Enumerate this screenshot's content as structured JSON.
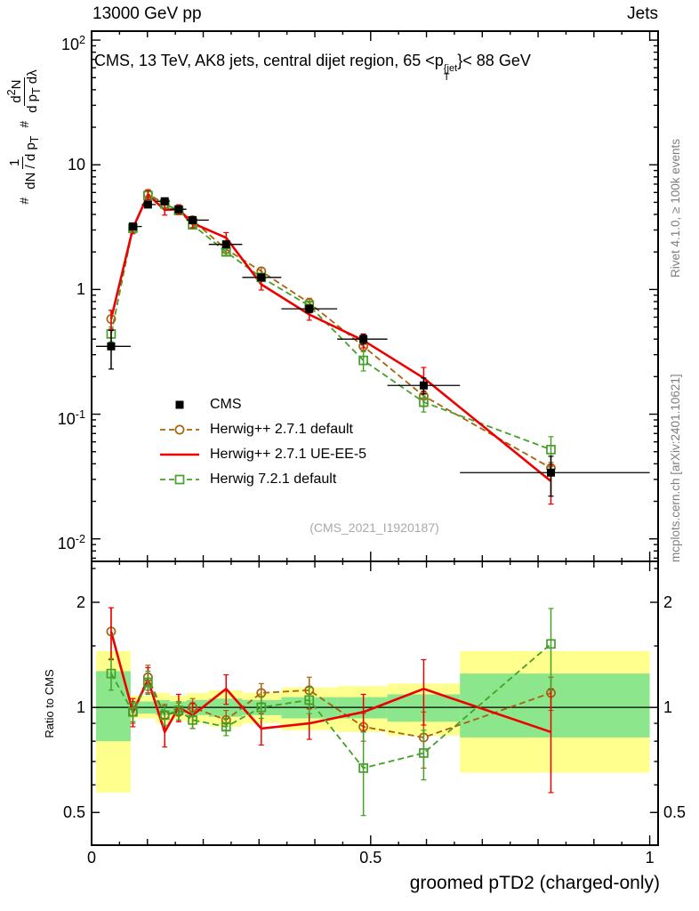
{
  "header": {
    "left_label": "13000 GeV pp",
    "right_label": "Jets"
  },
  "main_panel": {
    "title_html": "CMS, 13 TeV, AK8 jets, central dijet region, 65 &lt;p<span class='ss'><span class='up'>{jet</span><span class='dn'>T</span></span>}&lt; 88 GeV",
    "watermark": "(CMS_2021_I1920187)",
    "ylabel": {
      "hash1": "#",
      "frac1_num": "1",
      "frac1_den_html": "dN / d p<sub>T</sub>",
      "hash2": "#",
      "frac2_num_html": "d<sup>2</sup>N",
      "frac2_den_html": "d p<sub>T</sub> dλ"
    },
    "ytick_labels_html": [
      "10<sup>2</sup>",
      "10",
      "1",
      "10<sup>-1</sup>",
      "10<sup>-2</sup>"
    ],
    "ytick_values": [
      100,
      10,
      1,
      0.1,
      0.01
    ]
  },
  "ratio_panel": {
    "ylabel": "Ratio to CMS",
    "ytick_labels": [
      "2",
      "1",
      "0.5"
    ],
    "ytick_values": [
      2,
      1,
      0.5
    ]
  },
  "x_axis": {
    "title": "groomed pTD2 (charged-only)",
    "tick_labels": [
      "0",
      "0.5",
      "1"
    ],
    "tick_values": [
      0,
      0.5,
      1
    ]
  },
  "side_notes": {
    "top_right": "Rivet 4.1.0, ≥ 100k events",
    "bottom_right": "mcplots.cern.ch [arXiv:2401.10621]"
  },
  "legend": {
    "items": [
      {
        "label": "CMS",
        "marker": "square-filled",
        "line": "none",
        "color_key": "cms"
      },
      {
        "label": "Herwig++ 2.7.1 default",
        "marker": "circle-open",
        "line": "dashed",
        "color_key": "herwigpp_default"
      },
      {
        "label": "Herwig++ 2.7.1 UE-EE-5",
        "marker": "none",
        "line": "solid",
        "color_key": "herwigpp_ueee5"
      },
      {
        "label": "Herwig 7.2.1 default",
        "marker": "square-open",
        "line": "dashed",
        "color_key": "herwig7"
      }
    ]
  },
  "colors": {
    "cms": "#000000",
    "herwigpp_default": "#a8620f",
    "herwigpp_ueee5": "#ee0000",
    "herwig7": "#44a029",
    "band_yellow": "#ffff8d",
    "band_green": "#8ce78c",
    "gray_text": "#7f7f7f",
    "watermark": "#a9a9a9"
  },
  "chart_data": [
    {
      "type": "line",
      "panel": "main",
      "title": "CMS, 13 TeV, AK8 jets, central dijet region, 65 < pT^{jet} < 88 GeV",
      "xlabel": "groomed pTD2 (charged-only)",
      "ylabel": "# 1/(dN/dpT) # d2N/(dpT dlambda)",
      "legend_position": "inside-left",
      "grid": false,
      "x_range": [
        0,
        1.015
      ],
      "y_range_log": [
        0.0066,
        118
      ],
      "x": [
        0.035,
        0.074,
        0.101,
        0.131,
        0.156,
        0.181,
        0.241,
        0.304,
        0.39,
        0.487,
        0.595,
        0.823
      ],
      "bin_edges": [
        0.008,
        0.07,
        0.09,
        0.115,
        0.14,
        0.17,
        0.21,
        0.27,
        0.34,
        0.44,
        0.53,
        0.66,
        1.0
      ],
      "series": [
        {
          "name": "CMS",
          "marker": "square-filled",
          "line": "none",
          "color_key": "cms",
          "values": [
            0.35,
            3.2,
            4.8,
            5.1,
            4.4,
            3.6,
            2.3,
            1.25,
            0.7,
            0.4,
            0.17,
            0.034
          ],
          "errors": [
            0.12,
            0.18,
            0.22,
            0.2,
            0.17,
            0.14,
            0.1,
            0.07,
            0.05,
            0.035,
            0.025,
            0.012
          ]
        },
        {
          "name": "Herwig++ 2.7.1 default",
          "marker": "circle-open",
          "line": "dashed",
          "color_key": "herwigpp_default",
          "values": [
            0.58,
            3.1,
            5.85,
            4.85,
            4.3,
            3.6,
            2.1,
            1.4,
            0.78,
            0.35,
            0.14,
            0.037
          ],
          "errors": [
            0.1,
            0.2,
            0.45,
            0.33,
            0.26,
            0.2,
            0.13,
            0.1,
            0.07,
            0.032,
            0.025,
            0.004
          ]
        },
        {
          "name": "Herwig++ 2.7.1 UE-EE-5",
          "marker": "none",
          "line": "solid",
          "color_key": "herwigpp_ueee5",
          "values": [
            0.58,
            3.1,
            5.75,
            4.35,
            4.4,
            3.4,
            2.6,
            1.1,
            0.63,
            0.39,
            0.195,
            0.029
          ],
          "errors": [
            0.1,
            0.3,
            0.5,
            0.4,
            0.38,
            0.27,
            0.26,
            0.11,
            0.063,
            0.05,
            0.042,
            0.01
          ]
        },
        {
          "name": "Herwig 7.2.1 default",
          "marker": "square-open",
          "line": "dashed",
          "color_key": "herwig7",
          "values": [
            0.44,
            3.1,
            5.66,
            4.85,
            4.3,
            3.3,
            2.0,
            1.25,
            0.74,
            0.27,
            0.125,
            0.052
          ],
          "errors": [
            0.06,
            0.19,
            0.42,
            0.3,
            0.26,
            0.17,
            0.12,
            0.09,
            0.066,
            0.048,
            0.021,
            0.014
          ]
        }
      ],
      "annotation": "(CMS_2021_I1920187)"
    },
    {
      "type": "line",
      "panel": "ratio",
      "ylabel": "Ratio to CMS",
      "y_range_log": [
        0.403,
        2.62
      ],
      "yticks": [
        0.5,
        1,
        2
      ],
      "reference_line": 1.0,
      "x": [
        0.035,
        0.074,
        0.101,
        0.131,
        0.156,
        0.181,
        0.241,
        0.304,
        0.39,
        0.487,
        0.595,
        0.823
      ],
      "bin_edges": [
        0.008,
        0.07,
        0.09,
        0.115,
        0.14,
        0.17,
        0.21,
        0.27,
        0.34,
        0.44,
        0.53,
        0.66,
        1.0
      ],
      "bands": {
        "yellow": [
          [
            0.57,
            1.45
          ],
          [
            0.93,
            1.08
          ],
          [
            0.93,
            1.08
          ],
          [
            0.9,
            1.1
          ],
          [
            0.92,
            1.08
          ],
          [
            0.9,
            1.1
          ],
          [
            0.88,
            1.12
          ],
          [
            0.9,
            1.1
          ],
          [
            0.86,
            1.14
          ],
          [
            0.85,
            1.15
          ],
          [
            0.83,
            1.17
          ],
          [
            0.65,
            1.45
          ]
        ],
        "green": [
          [
            0.8,
            1.27
          ],
          [
            0.96,
            1.04
          ],
          [
            0.96,
            1.04
          ],
          [
            0.95,
            1.05
          ],
          [
            0.96,
            1.04
          ],
          [
            0.95,
            1.05
          ],
          [
            0.94,
            1.06
          ],
          [
            0.95,
            1.05
          ],
          [
            0.93,
            1.07
          ],
          [
            0.93,
            1.07
          ],
          [
            0.91,
            1.09
          ],
          [
            0.82,
            1.25
          ]
        ]
      },
      "series": [
        {
          "name": "Herwig++ 2.7.1 default",
          "marker": "circle-open",
          "line": "dashed",
          "color_key": "herwigpp_default",
          "values": [
            1.65,
            0.97,
            1.22,
            0.95,
            0.97,
            1.0,
            0.92,
            1.1,
            1.12,
            0.88,
            0.82,
            1.1
          ],
          "errors": [
            0.28,
            0.07,
            0.1,
            0.07,
            0.06,
            0.06,
            0.06,
            0.07,
            0.1,
            0.08,
            0.15,
            0.12
          ]
        },
        {
          "name": "Herwig++ 2.7.1 UE-EE-5",
          "marker": "none",
          "line": "solid",
          "color_key": "herwigpp_ueee5",
          "values": [
            1.65,
            0.97,
            1.2,
            0.85,
            1.0,
            0.95,
            1.13,
            0.87,
            0.9,
            0.97,
            1.13,
            0.85
          ],
          "errors": [
            0.28,
            0.09,
            0.1,
            0.08,
            0.09,
            0.08,
            0.11,
            0.09,
            0.09,
            0.12,
            0.24,
            0.28
          ]
        },
        {
          "name": "Herwig 7.2.1 default",
          "marker": "square-open",
          "line": "dashed",
          "color_key": "herwig7",
          "values": [
            1.25,
            0.97,
            1.18,
            0.95,
            0.98,
            0.92,
            0.88,
            1.0,
            1.05,
            0.67,
            0.74,
            1.52
          ],
          "errors": [
            0.13,
            0.06,
            0.09,
            0.06,
            0.06,
            0.05,
            0.05,
            0.07,
            0.09,
            0.18,
            0.12,
            0.4
          ]
        }
      ]
    }
  ]
}
